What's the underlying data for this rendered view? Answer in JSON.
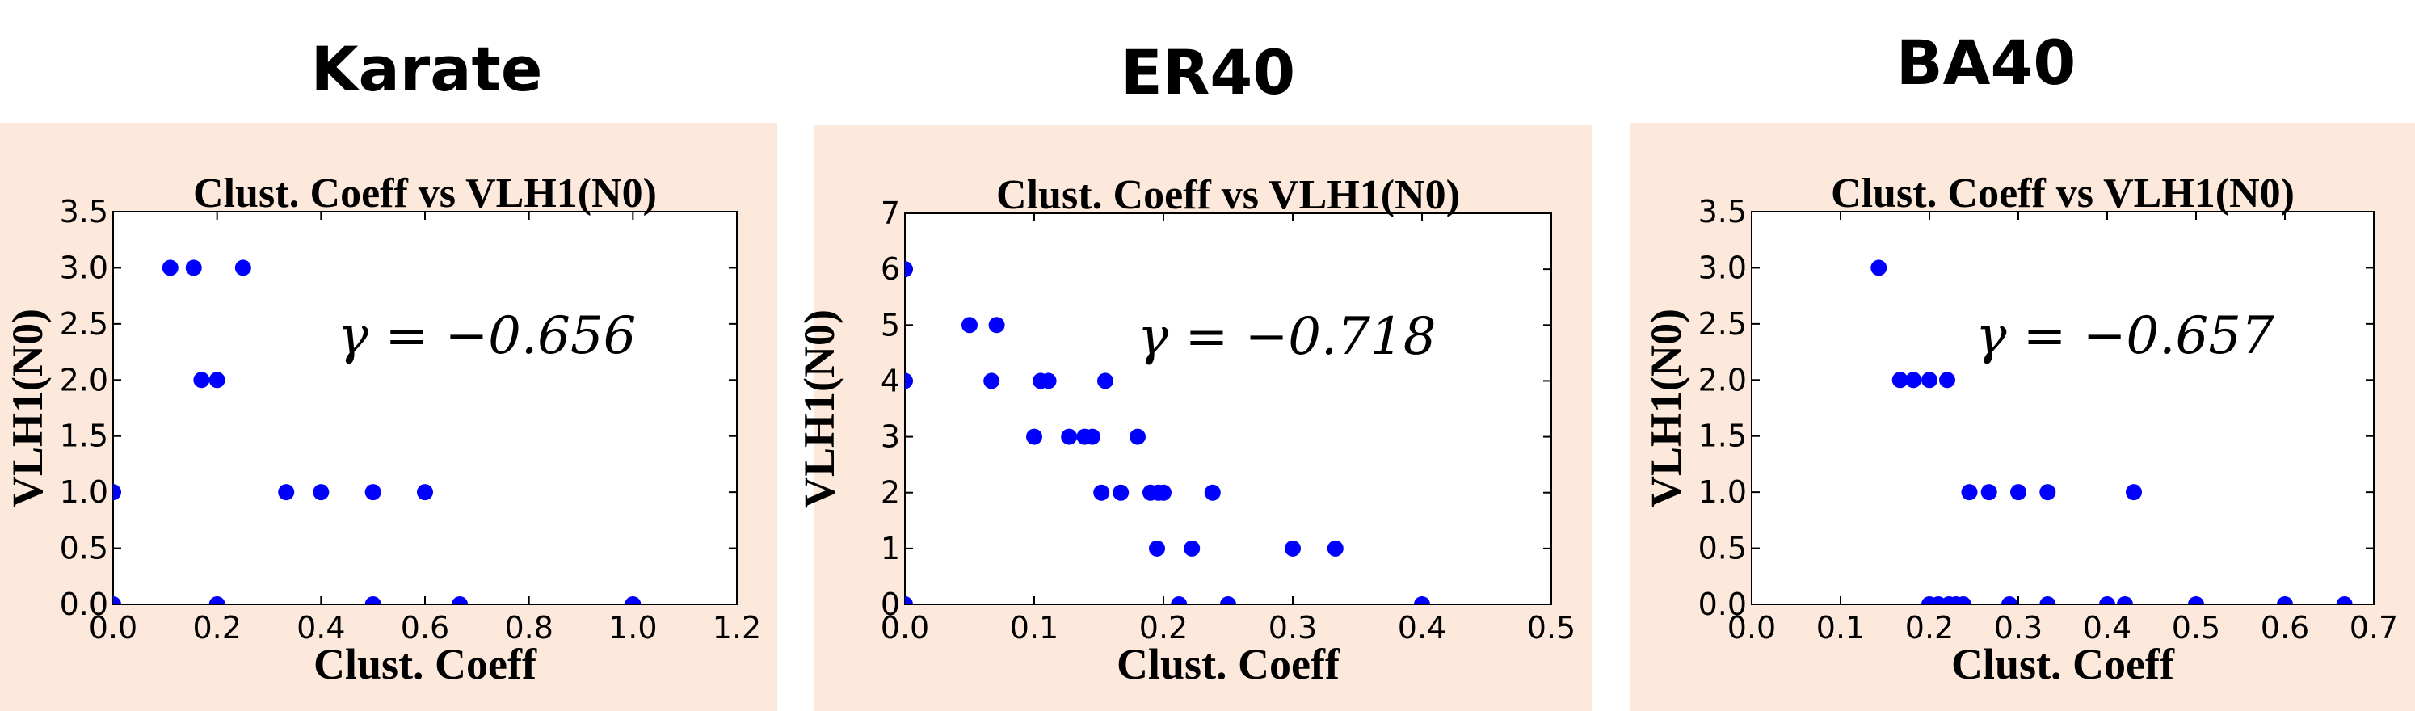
{
  "chart_data": [
    {
      "type": "scatter",
      "heading": "Karate",
      "title": "Clust. Coeff vs VLH1(N0)",
      "xlabel": "Clust. Coeff",
      "ylabel": "VLH1(N0)",
      "xlim": [
        0,
        1.2
      ],
      "ylim": [
        0,
        3.5
      ],
      "xticks": [
        "0.0",
        "0.2",
        "0.4",
        "0.6",
        "0.8",
        "1.0",
        "1.2"
      ],
      "yticks": [
        "0.0",
        "0.5",
        "1.0",
        "1.5",
        "2.0",
        "2.5",
        "3.0",
        "3.5"
      ],
      "annotation": "γ = −0.656",
      "grid": false,
      "color": "#0000ff",
      "points": [
        [
          0.0,
          1.0
        ],
        [
          0.0,
          0.0
        ],
        [
          0.11,
          3.0
        ],
        [
          0.155,
          3.0
        ],
        [
          0.25,
          3.0
        ],
        [
          0.17,
          2.0
        ],
        [
          0.2,
          2.0
        ],
        [
          0.2,
          0.0
        ],
        [
          0.333,
          1.0
        ],
        [
          0.4,
          1.0
        ],
        [
          0.5,
          1.0
        ],
        [
          0.6,
          1.0
        ],
        [
          0.5,
          0.0
        ],
        [
          0.667,
          0.0
        ],
        [
          1.0,
          0.0
        ]
      ]
    },
    {
      "type": "scatter",
      "heading": "ER40",
      "title": "Clust. Coeff vs VLH1(N0)",
      "xlabel": "Clust. Coeff",
      "ylabel": "VLH1(N0)",
      "xlim": [
        0,
        0.5
      ],
      "ylim": [
        0,
        7
      ],
      "xticks": [
        "0.0",
        "0.1",
        "0.2",
        "0.3",
        "0.4",
        "0.5"
      ],
      "yticks": [
        "0",
        "1",
        "2",
        "3",
        "4",
        "5",
        "6",
        "7"
      ],
      "annotation": "γ = −0.718",
      "grid": false,
      "color": "#0000ff",
      "points": [
        [
          0.0,
          6
        ],
        [
          0.0,
          4
        ],
        [
          0.0,
          0
        ],
        [
          0.05,
          5
        ],
        [
          0.071,
          5
        ],
        [
          0.067,
          4
        ],
        [
          0.105,
          4
        ],
        [
          0.111,
          4
        ],
        [
          0.155,
          4
        ],
        [
          0.1,
          3
        ],
        [
          0.127,
          3
        ],
        [
          0.139,
          3
        ],
        [
          0.145,
          3
        ],
        [
          0.18,
          3
        ],
        [
          0.152,
          2
        ],
        [
          0.167,
          2
        ],
        [
          0.19,
          2
        ],
        [
          0.196,
          2
        ],
        [
          0.2,
          2
        ],
        [
          0.238,
          2
        ],
        [
          0.195,
          1
        ],
        [
          0.222,
          1
        ],
        [
          0.3,
          1
        ],
        [
          0.333,
          1
        ],
        [
          0.212,
          0
        ],
        [
          0.25,
          0
        ],
        [
          0.4,
          0
        ]
      ]
    },
    {
      "type": "scatter",
      "heading": "BA40",
      "title": "Clust. Coeff vs VLH1(N0)",
      "xlabel": "Clust. Coeff",
      "ylabel": "VLH1(N0)",
      "xlim": [
        0,
        0.7
      ],
      "ylim": [
        0,
        3.5
      ],
      "xticks": [
        "0.0",
        "0.1",
        "0.2",
        "0.3",
        "0.4",
        "0.5",
        "0.6",
        "0.7"
      ],
      "yticks": [
        "0.0",
        "0.5",
        "1.0",
        "1.5",
        "2.0",
        "2.5",
        "3.0",
        "3.5"
      ],
      "annotation": "γ = −0.657",
      "grid": false,
      "color": "#0000ff",
      "points": [
        [
          0.143,
          3.0
        ],
        [
          0.167,
          2.0
        ],
        [
          0.182,
          2.0
        ],
        [
          0.2,
          2.0
        ],
        [
          0.22,
          2.0
        ],
        [
          0.245,
          1.0
        ],
        [
          0.267,
          1.0
        ],
        [
          0.3,
          1.0
        ],
        [
          0.333,
          1.0
        ],
        [
          0.43,
          1.0
        ],
        [
          0.2,
          0.0
        ],
        [
          0.21,
          0.0
        ],
        [
          0.222,
          0.0
        ],
        [
          0.23,
          0.0
        ],
        [
          0.238,
          0.0
        ],
        [
          0.29,
          0.0
        ],
        [
          0.333,
          0.0
        ],
        [
          0.4,
          0.0
        ],
        [
          0.42,
          0.0
        ],
        [
          0.5,
          0.0
        ],
        [
          0.6,
          0.0
        ],
        [
          0.667,
          0.0
        ]
      ]
    }
  ]
}
